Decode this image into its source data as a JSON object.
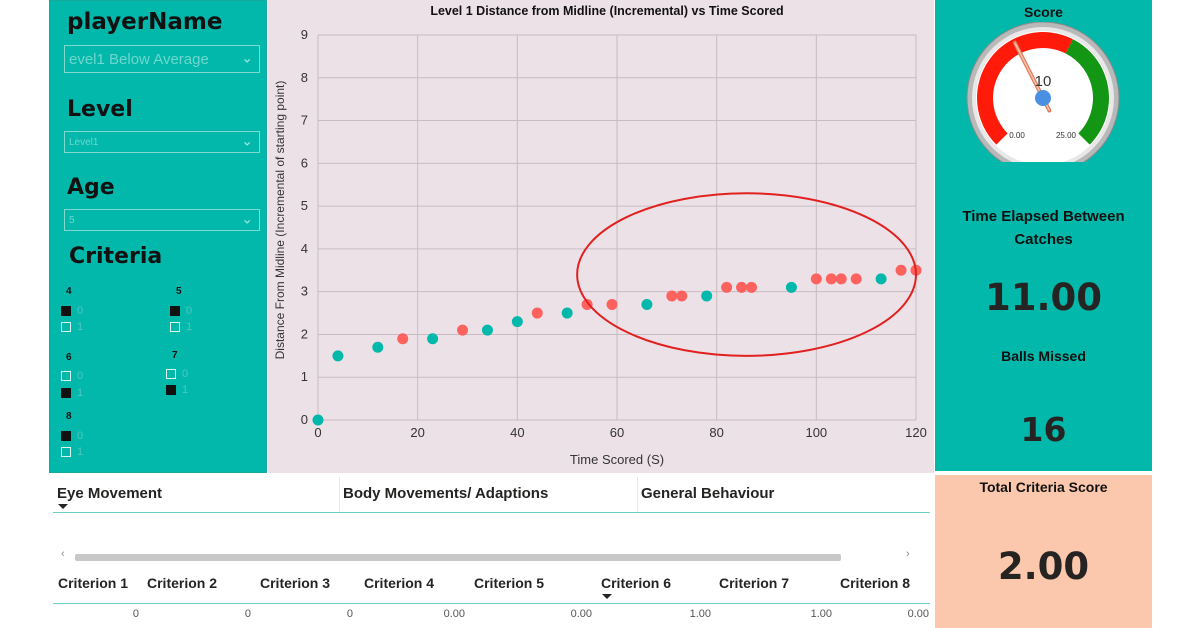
{
  "filters": {
    "player_heading": "playerName",
    "player_value": "evel1 Below Average",
    "level_heading": "Level",
    "level_value": "Level1",
    "age_heading": "Age",
    "age_value": "5",
    "criteria_heading": "Criteria",
    "criteria_groups": [
      {
        "title": "4",
        "options": [
          {
            "label": "0",
            "checked": true
          },
          {
            "label": "1",
            "checked": false
          }
        ]
      },
      {
        "title": "5",
        "options": [
          {
            "label": "0",
            "checked": true
          },
          {
            "label": "1",
            "checked": false
          }
        ]
      },
      {
        "title": "6",
        "options": [
          {
            "label": "0",
            "checked": false
          },
          {
            "label": "1",
            "checked": true
          }
        ]
      },
      {
        "title": "7",
        "options": [
          {
            "label": "0",
            "checked": false
          },
          {
            "label": "1",
            "checked": true
          }
        ]
      },
      {
        "title": "8",
        "options": [
          {
            "label": "0",
            "checked": true
          },
          {
            "label": "1",
            "checked": false
          }
        ]
      }
    ]
  },
  "chart_data": {
    "type": "scatter",
    "title": "Level 1 Distance from Midline (Incremental) vs Time Scored",
    "xlabel": "Time Scored (S)",
    "ylabel": "Distance From Midline (Incremental of starting point)",
    "xlim": [
      0,
      120
    ],
    "ylim": [
      0,
      9
    ],
    "xticks": [
      0,
      20,
      40,
      60,
      80,
      100,
      120
    ],
    "yticks": [
      0,
      1,
      2,
      3,
      4,
      5,
      6,
      7,
      8,
      9
    ],
    "grid": true,
    "colors": {
      "teal": "#01b8aa",
      "salmon": "#fd625e"
    },
    "points": [
      {
        "x": 0,
        "y": 0,
        "color": "teal"
      },
      {
        "x": 4,
        "y": 1.5,
        "color": "teal"
      },
      {
        "x": 12,
        "y": 1.7,
        "color": "teal"
      },
      {
        "x": 17,
        "y": 1.9,
        "color": "salmon"
      },
      {
        "x": 23,
        "y": 1.9,
        "color": "teal"
      },
      {
        "x": 29,
        "y": 2.1,
        "color": "salmon"
      },
      {
        "x": 34,
        "y": 2.1,
        "color": "teal"
      },
      {
        "x": 40,
        "y": 2.3,
        "color": "teal"
      },
      {
        "x": 44,
        "y": 2.5,
        "color": "salmon"
      },
      {
        "x": 50,
        "y": 2.5,
        "color": "teal"
      },
      {
        "x": 54,
        "y": 2.7,
        "color": "salmon"
      },
      {
        "x": 59,
        "y": 2.7,
        "color": "salmon"
      },
      {
        "x": 66,
        "y": 2.7,
        "color": "teal"
      },
      {
        "x": 71,
        "y": 2.9,
        "color": "salmon"
      },
      {
        "x": 73,
        "y": 2.9,
        "color": "salmon"
      },
      {
        "x": 78,
        "y": 2.9,
        "color": "teal"
      },
      {
        "x": 82,
        "y": 3.1,
        "color": "salmon"
      },
      {
        "x": 85,
        "y": 3.1,
        "color": "salmon"
      },
      {
        "x": 87,
        "y": 3.1,
        "color": "salmon"
      },
      {
        "x": 95,
        "y": 3.1,
        "color": "teal"
      },
      {
        "x": 100,
        "y": 3.3,
        "color": "salmon"
      },
      {
        "x": 103,
        "y": 3.3,
        "color": "salmon"
      },
      {
        "x": 105,
        "y": 3.3,
        "color": "salmon"
      },
      {
        "x": 108,
        "y": 3.3,
        "color": "salmon"
      },
      {
        "x": 113,
        "y": 3.3,
        "color": "teal"
      },
      {
        "x": 117,
        "y": 3.5,
        "color": "salmon"
      },
      {
        "x": 120,
        "y": 3.5,
        "color": "salmon"
      }
    ],
    "annotation": {
      "shape": "ellipse",
      "color": "#e0211f",
      "center": [
        86,
        3.4
      ],
      "radius": [
        34,
        1.9
      ]
    }
  },
  "score_gauge": {
    "title": "Score",
    "value": 10,
    "value_label": "10",
    "min_label": "0.00",
    "max_label": "25.00",
    "range": [
      0,
      25
    ]
  },
  "time_elapsed": {
    "label": "Time Elapsed Between Catches",
    "value": "11.00"
  },
  "balls_missed": {
    "label": "Balls Missed",
    "value": "16"
  },
  "total_criteria": {
    "label": "Total Criteria Score",
    "value": "2.00"
  },
  "behaviour_table": {
    "headers": [
      "Eye Movement",
      "Body Movements/ Adaptions",
      "General Behaviour"
    ],
    "scroll_left": "‹",
    "scroll_right": "›"
  },
  "criteria_table": {
    "headers": [
      "Criterion 1",
      "Criterion 2",
      "Criterion 3",
      "Criterion 4",
      "Criterion 5",
      "Criterion 6",
      "Criterion 7",
      "Criterion 8"
    ],
    "values": [
      "0",
      "0",
      "0",
      "0.00",
      "0.00",
      "1.00",
      "1.00",
      "0.00"
    ]
  }
}
